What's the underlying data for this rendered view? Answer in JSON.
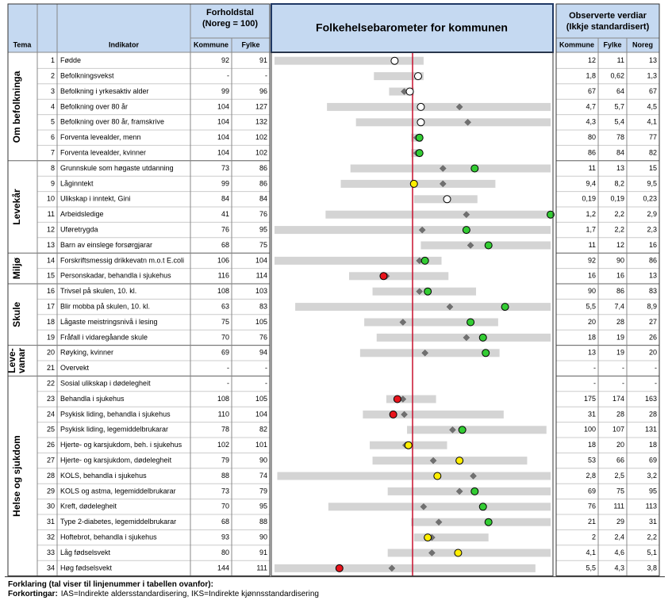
{
  "header": {
    "tema": "Tema",
    "indikator": "Indikator",
    "forholdstal": [
      "Forholdstal",
      "(Noreg = 100)"
    ],
    "forholdstal_cols": [
      "Kommune",
      "Fylke"
    ],
    "title": "Folkehelsebarometer for kommunen",
    "observerte": [
      "Observerte verdiar",
      "(Ikkje standardisert)"
    ],
    "observerte_cols": [
      "Kommune",
      "Fylke",
      "Noreg"
    ]
  },
  "barometer": {
    "xlim": [
      -1,
      1
    ],
    "reference": 0,
    "reference_color": "#c8102e",
    "bar_color": "#d4d4d4",
    "fylke_color": "#707070"
  },
  "groups": [
    {
      "tema": [
        "Om befolkninga"
      ],
      "rows": [
        {
          "nr": 1,
          "indikator": "Fødde",
          "forholdstal": [
            "92",
            "91"
          ],
          "observert": [
            "12",
            "11",
            "13"
          ],
          "bar": [
            -1,
            0.08
          ],
          "kommune": -0.13,
          "fylke": null,
          "color": "#ffffff"
        },
        {
          "nr": 2,
          "indikator": "Befolkningsvekst",
          "forholdstal": [
            "-",
            "-"
          ],
          "observert": [
            "1,8",
            "0,62",
            "1,3"
          ],
          "bar": [
            -0.28,
            0.08
          ],
          "kommune": 0.04,
          "fylke": null,
          "color": "#ffffff"
        },
        {
          "nr": 3,
          "indikator": "Befolkning i yrkesaktiv alder",
          "forholdstal": [
            "99",
            "96"
          ],
          "observert": [
            "67",
            "64",
            "67"
          ],
          "bar": [
            -0.17,
            0.01
          ],
          "kommune": -0.02,
          "fylke": -0.06,
          "color": "#ffffff"
        },
        {
          "nr": 4,
          "indikator": "Befolkning over 80 år",
          "forholdstal": [
            "104",
            "127"
          ],
          "observert": [
            "4,7",
            "5,7",
            "4,5"
          ],
          "bar": [
            -0.62,
            1
          ],
          "kommune": 0.06,
          "fylke": 0.34,
          "color": "#ffffff"
        },
        {
          "nr": 5,
          "indikator": "Befolkning over 80 år, framskrive",
          "forholdstal": [
            "104",
            "132"
          ],
          "observert": [
            "4,3",
            "5,4",
            "4,1"
          ],
          "bar": [
            -0.41,
            1
          ],
          "kommune": 0.06,
          "fylke": 0.4,
          "color": "#ffffff"
        },
        {
          "nr": 6,
          "indikator": "Forventa levealder, menn",
          "forholdstal": [
            "104",
            "102"
          ],
          "observert": [
            "80",
            "78",
            "77"
          ],
          "bar": [
            -0.01,
            0.07
          ],
          "kommune": 0.05,
          "fylke": 0.03,
          "color": "#33cc33"
        },
        {
          "nr": 7,
          "indikator": "Forventa levealder, kvinner",
          "forholdstal": [
            "104",
            "102"
          ],
          "observert": [
            "86",
            "84",
            "82"
          ],
          "bar": [
            -0.01,
            0.07
          ],
          "kommune": 0.05,
          "fylke": 0.03,
          "color": "#33cc33"
        }
      ]
    },
    {
      "tema": [
        "Levekår"
      ],
      "rows": [
        {
          "nr": 8,
          "indikator": "Grunnskule som høgaste utdanning",
          "forholdstal": [
            "73",
            "86"
          ],
          "observert": [
            "11",
            "13",
            "15"
          ],
          "bar": [
            -0.45,
            1
          ],
          "kommune": 0.45,
          "fylke": 0.22,
          "color": "#33cc33"
        },
        {
          "nr": 9,
          "indikator": "Låginntekt",
          "forholdstal": [
            "99",
            "86"
          ],
          "observert": [
            "9,4",
            "8,2",
            "9,5"
          ],
          "bar": [
            -0.52,
            0.6
          ],
          "kommune": 0.01,
          "fylke": 0.22,
          "color": "#ffee00"
        },
        {
          "nr": 10,
          "indikator": "Ulikskap i inntekt, Gini",
          "forholdstal": [
            "84",
            "84"
          ],
          "observert": [
            "0,19",
            "0,19",
            "0,23"
          ],
          "bar": [
            0.01,
            0.47
          ],
          "kommune": 0.25,
          "fylke": null,
          "color": "#ffffff"
        },
        {
          "nr": 11,
          "indikator": "Arbeidsledige",
          "forholdstal": [
            "41",
            "76"
          ],
          "observert": [
            "1,2",
            "2,2",
            "2,9"
          ],
          "bar": [
            -0.63,
            1
          ],
          "kommune": 1,
          "fylke": 0.39,
          "color": "#33cc33"
        },
        {
          "nr": 12,
          "indikator": "Uføretrygda",
          "forholdstal": [
            "76",
            "95"
          ],
          "observert": [
            "1,7",
            "2,2",
            "2,3"
          ],
          "bar": [
            -1,
            1
          ],
          "kommune": 0.39,
          "fylke": 0.07,
          "color": "#33cc33"
        },
        {
          "nr": 13,
          "indikator": "Barn av einslege forsørgjarar",
          "forholdstal": [
            "68",
            "75"
          ],
          "observert": [
            "11",
            "12",
            "16"
          ],
          "bar": [
            0.06,
            1
          ],
          "kommune": 0.55,
          "fylke": 0.42,
          "color": "#33cc33"
        }
      ]
    },
    {
      "tema": [
        "Miljø"
      ],
      "rows": [
        {
          "nr": 14,
          "indikator": "Forskriftsmessig drikkevatn m.o.t E.coli",
          "forholdstal": [
            "106",
            "104"
          ],
          "observert": [
            "92",
            "90",
            "86"
          ],
          "bar": [
            -1,
            0.21
          ],
          "kommune": 0.09,
          "fylke": 0.05,
          "color": "#33cc33"
        },
        {
          "nr": 15,
          "indikator": "Personskadar, behandla i sjukehus",
          "forholdstal": [
            "116",
            "114"
          ],
          "observert": [
            "16",
            "16",
            "13"
          ],
          "bar": [
            -0.46,
            0.26
          ],
          "kommune": -0.21,
          "fylke": -0.19,
          "color": "#e8141c"
        }
      ]
    },
    {
      "tema": [
        "Skule"
      ],
      "rows": [
        {
          "nr": 16,
          "indikator": "Trivsel på skulen, 10. kl.",
          "forholdstal": [
            "108",
            "103"
          ],
          "observert": [
            "90",
            "86",
            "83"
          ],
          "bar": [
            -0.29,
            0.46
          ],
          "kommune": 0.11,
          "fylke": 0.05,
          "color": "#33cc33"
        },
        {
          "nr": 17,
          "indikator": "Blir mobba på skulen, 10. kl.",
          "forholdstal": [
            "63",
            "83"
          ],
          "observert": [
            "5,5",
            "7,4",
            "8,9"
          ],
          "bar": [
            -0.85,
            1
          ],
          "kommune": 0.67,
          "fylke": 0.27,
          "color": "#33cc33"
        },
        {
          "nr": 18,
          "indikator": "Lågaste meistringsnivå i lesing",
          "forholdstal": [
            "75",
            "105"
          ],
          "observert": [
            "20",
            "28",
            "27"
          ],
          "bar": [
            -0.35,
            0.62
          ],
          "kommune": 0.42,
          "fylke": -0.07,
          "color": "#33cc33"
        },
        {
          "nr": 19,
          "indikator": "Fråfall i vidaregåande skule",
          "forholdstal": [
            "70",
            "76"
          ],
          "observert": [
            "18",
            "19",
            "26"
          ],
          "bar": [
            -0.26,
            1
          ],
          "kommune": 0.51,
          "fylke": 0.39,
          "color": "#33cc33"
        }
      ]
    },
    {
      "tema": [
        "Leve-",
        "vanar"
      ],
      "rows": [
        {
          "nr": 20,
          "indikator": "Røyking, kvinner",
          "forholdstal": [
            "69",
            "94"
          ],
          "observert": [
            "13",
            "19",
            "20"
          ],
          "bar": [
            -0.38,
            0.63
          ],
          "kommune": 0.53,
          "fylke": 0.09,
          "color": "#33cc33"
        },
        {
          "nr": 21,
          "indikator": "Overvekt",
          "forholdstal": [
            "-",
            "-"
          ],
          "observert": [
            "-",
            "-",
            "-"
          ],
          "bar": null,
          "kommune": null,
          "fylke": null,
          "color": null
        }
      ]
    },
    {
      "tema": [
        "Helse og sjukdom"
      ],
      "rows": [
        {
          "nr": 22,
          "indikator": "Sosial ulikskap i dødelegheit",
          "forholdstal": [
            "-",
            "-"
          ],
          "observert": [
            "-",
            "-",
            "-"
          ],
          "bar": null,
          "kommune": null,
          "fylke": null,
          "color": null
        },
        {
          "nr": 23,
          "indikator": "Behandla i sjukehus",
          "forholdstal": [
            "108",
            "105"
          ],
          "observert": [
            "175",
            "174",
            "163"
          ],
          "bar": [
            -0.19,
            0.17
          ],
          "kommune": -0.11,
          "fylke": -0.07,
          "color": "#e8141c"
        },
        {
          "nr": 24,
          "indikator": "Psykisk liding, behandla i sjukehus",
          "forholdstal": [
            "110",
            "104"
          ],
          "observert": [
            "31",
            "28",
            "28"
          ],
          "bar": [
            -0.36,
            0.66
          ],
          "kommune": -0.14,
          "fylke": -0.06,
          "color": "#e8141c"
        },
        {
          "nr": 25,
          "indikator": "Psykisk liding, legemiddelbrukarar",
          "forholdstal": [
            "78",
            "82"
          ],
          "observert": [
            "100",
            "107",
            "131"
          ],
          "bar": [
            -0.04,
            0.97
          ],
          "kommune": 0.36,
          "fylke": 0.29,
          "color": "#33cc33"
        },
        {
          "nr": 26,
          "indikator": "Hjerte- og karsjukdom, beh. i sjukehus",
          "forholdstal": [
            "102",
            "101"
          ],
          "observert": [
            "18",
            "20",
            "18"
          ],
          "bar": [
            -0.31,
            0.25
          ],
          "kommune": -0.03,
          "fylke": -0.05,
          "color": "#ffee00"
        },
        {
          "nr": 27,
          "indikator": "Hjerte- og karsjukdom, dødelegheit",
          "forholdstal": [
            "79",
            "90"
          ],
          "observert": [
            "53",
            "66",
            "69"
          ],
          "bar": [
            -0.29,
            0.83
          ],
          "kommune": 0.34,
          "fylke": 0.15,
          "color": "#ffee00"
        },
        {
          "nr": 28,
          "indikator": "KOLS, behandla i sjukehus",
          "forholdstal": [
            "88",
            "74"
          ],
          "observert": [
            "2,8",
            "2,5",
            "3,2"
          ],
          "bar": [
            -0.98,
            1
          ],
          "kommune": 0.18,
          "fylke": 0.44,
          "color": "#ffee00"
        },
        {
          "nr": 29,
          "indikator": "KOLS og astma, legemiddelbrukarar",
          "forholdstal": [
            "73",
            "79"
          ],
          "observert": [
            "69",
            "75",
            "95"
          ],
          "bar": [
            -0.18,
            1
          ],
          "kommune": 0.45,
          "fylke": 0.34,
          "color": "#33cc33"
        },
        {
          "nr": 30,
          "indikator": "Kreft, dødelegheit",
          "forholdstal": [
            "70",
            "95"
          ],
          "observert": [
            "76",
            "111",
            "113"
          ],
          "bar": [
            -0.61,
            1
          ],
          "kommune": 0.51,
          "fylke": 0.08,
          "color": "#33cc33"
        },
        {
          "nr": 31,
          "indikator": "Type 2-diabetes, legemiddelbrukarar",
          "forholdstal": [
            "68",
            "88"
          ],
          "observert": [
            "21",
            "29",
            "31"
          ],
          "bar": [
            -0.01,
            1
          ],
          "kommune": 0.55,
          "fylke": 0.19,
          "color": "#33cc33"
        },
        {
          "nr": 32,
          "indikator": "Hoftebrot, behandla i sjukehus",
          "forholdstal": [
            "93",
            "90"
          ],
          "observert": [
            "2",
            "2,4",
            "2,2"
          ],
          "bar": [
            0.01,
            0.55
          ],
          "kommune": 0.11,
          "fylke": 0.14,
          "color": "#ffee00"
        },
        {
          "nr": 33,
          "indikator": "Låg fødselsvekt",
          "forholdstal": [
            "80",
            "91"
          ],
          "observert": [
            "4,1",
            "4,6",
            "5,1"
          ],
          "bar": [
            -0.18,
            1
          ],
          "kommune": 0.33,
          "fylke": 0.14,
          "color": "#ffee00"
        },
        {
          "nr": 34,
          "indikator": "Høg fødselsvekt",
          "forholdstal": [
            "144",
            "111"
          ],
          "observert": [
            "5,5",
            "4,3",
            "3,8"
          ],
          "bar": [
            -1,
            0.89
          ],
          "kommune": -0.53,
          "fylke": -0.15,
          "color": "#e8141c"
        }
      ]
    }
  ],
  "footer": {
    "forklaring": "Forklaring (tal viser til linjenummer i tabellen ovanfor):",
    "forkortingar_label": "Forkortingar:",
    "forkortingar": "IAS=Indirekte aldersstandardisering, IKS=Indirekte kjønnsstandardisering"
  }
}
